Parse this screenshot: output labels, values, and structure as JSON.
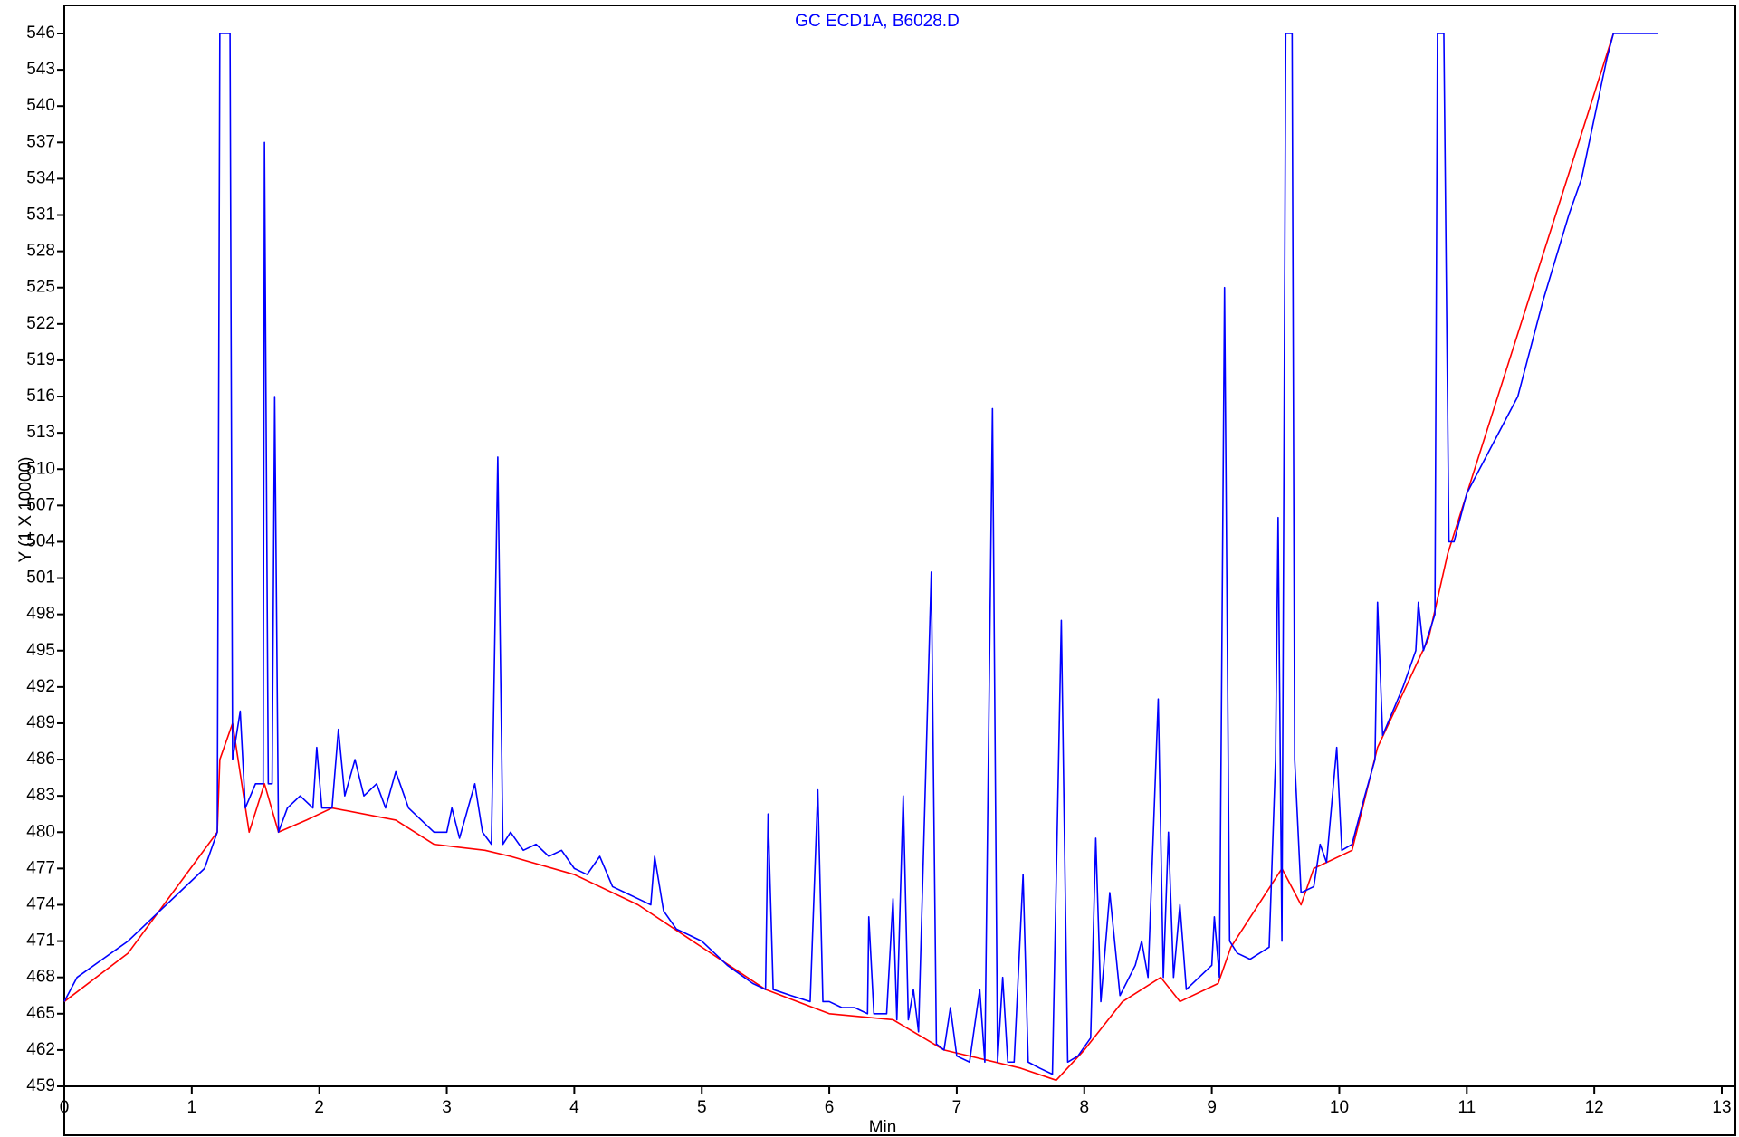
{
  "chart_data": {
    "type": "line",
    "title": "GC ECD1A, B6028.D",
    "x_label": "Min",
    "y_label": "Y (1 X 10000)",
    "xlim": [
      0,
      13
    ],
    "xticks": [
      0,
      1,
      2,
      3,
      4,
      5,
      6,
      7,
      8,
      9,
      10,
      11,
      12,
      13
    ],
    "ylim": [
      459,
      546
    ],
    "yticks": [
      459,
      462,
      465,
      468,
      471,
      474,
      477,
      480,
      483,
      486,
      489,
      492,
      495,
      498,
      501,
      504,
      507,
      510,
      513,
      516,
      519,
      522,
      525,
      528,
      531,
      534,
      537,
      540,
      543,
      546
    ],
    "series": [
      {
        "color": "#ff0000",
        "x": [
          0,
          0.5,
          1.2,
          1.22,
          1.32,
          1.45,
          1.57,
          1.68,
          1.9,
          2.1,
          2.6,
          2.9,
          3.3,
          3.5,
          4.0,
          4.5,
          5.0,
          5.5,
          6.0,
          6.5,
          6.9,
          7.5,
          7.78,
          8.0,
          8.3,
          8.6,
          8.75,
          9.05,
          9.15,
          9.55,
          9.7,
          9.8,
          10.1,
          10.3,
          10.7,
          10.85,
          12.15
        ],
        "values": [
          466,
          470,
          480,
          486,
          489,
          480,
          484,
          480,
          481,
          482,
          481,
          479,
          478.5,
          478,
          476.5,
          474,
          470.5,
          467,
          465,
          464.5,
          462,
          460.5,
          459.5,
          462,
          466,
          468,
          466,
          467.5,
          470.5,
          477,
          474,
          477,
          478.5,
          487,
          496,
          503,
          546
        ]
      },
      {
        "color": "#0000ff",
        "x": [
          0,
          0.1,
          0.3,
          0.5,
          0.7,
          0.9,
          1.1,
          1.2,
          1.22,
          1.3,
          1.32,
          1.38,
          1.42,
          1.5,
          1.56,
          1.57,
          1.6,
          1.63,
          1.65,
          1.68,
          1.75,
          1.85,
          1.95,
          1.98,
          2.02,
          2.1,
          2.15,
          2.2,
          2.28,
          2.35,
          2.45,
          2.52,
          2.6,
          2.7,
          2.8,
          2.9,
          3.0,
          3.04,
          3.1,
          3.22,
          3.28,
          3.35,
          3.4,
          3.44,
          3.5,
          3.6,
          3.7,
          3.8,
          3.9,
          4.0,
          4.1,
          4.2,
          4.3,
          4.4,
          4.5,
          4.6,
          4.63,
          4.7,
          4.8,
          5.0,
          5.2,
          5.4,
          5.5,
          5.52,
          5.56,
          5.7,
          5.85,
          5.91,
          5.95,
          6.0,
          6.1,
          6.2,
          6.3,
          6.31,
          6.35,
          6.45,
          6.5,
          6.53,
          6.58,
          6.62,
          6.66,
          6.7,
          6.8,
          6.84,
          6.9,
          6.95,
          7.0,
          7.1,
          7.18,
          7.22,
          7.28,
          7.32,
          7.36,
          7.4,
          7.45,
          7.52,
          7.56,
          7.65,
          7.75,
          7.82,
          7.87,
          7.95,
          8.05,
          8.09,
          8.13,
          8.2,
          8.28,
          8.4,
          8.45,
          8.5,
          8.58,
          8.62,
          8.66,
          8.7,
          8.75,
          8.8,
          8.9,
          9.0,
          9.02,
          9.06,
          9.1,
          9.14,
          9.2,
          9.3,
          9.45,
          9.5,
          9.52,
          9.55,
          9.58,
          9.63,
          9.65,
          9.7,
          9.8,
          9.85,
          9.9,
          9.98,
          10.02,
          10.1,
          10.2,
          10.28,
          10.3,
          10.34,
          10.5,
          10.6,
          10.62,
          10.66,
          10.75,
          10.77,
          10.82,
          10.86,
          10.9,
          11.0,
          11.2,
          11.4,
          11.6,
          11.8,
          11.9,
          12.0,
          12.1,
          12.15,
          12.5
        ],
        "values": [
          466,
          468,
          469.5,
          471,
          473,
          475,
          477,
          480,
          546,
          546,
          486,
          490,
          482,
          484,
          484,
          537,
          484,
          484,
          516,
          480,
          482,
          483,
          482,
          487,
          482,
          482,
          488.5,
          483,
          486,
          483,
          484,
          482,
          485,
          482,
          481,
          480,
          480,
          482,
          479.5,
          484,
          480,
          479,
          511,
          479,
          480,
          478.5,
          479,
          478,
          478.5,
          477,
          476.5,
          478,
          475.5,
          475,
          474.5,
          474,
          478,
          473.5,
          472,
          471,
          469,
          467.5,
          467,
          481.5,
          467,
          466.5,
          466,
          483.5,
          466,
          466,
          465.5,
          465.5,
          465,
          473,
          465,
          465,
          474.5,
          464.5,
          483,
          464.5,
          467,
          463.5,
          501.5,
          462.5,
          462,
          465.5,
          461.5,
          461,
          467,
          461,
          515,
          461,
          468,
          461,
          461,
          476.5,
          461,
          460.5,
          460,
          497.5,
          461,
          461.5,
          463,
          479.5,
          466,
          475,
          466.5,
          469,
          471,
          468,
          491,
          468,
          480,
          468,
          474,
          467,
          468,
          469,
          473,
          468,
          525,
          471,
          470,
          469.5,
          470.5,
          486,
          506,
          471,
          546,
          546,
          486,
          475,
          475.5,
          479,
          477.5,
          487,
          478.5,
          479,
          483,
          486,
          499,
          488,
          492,
          495,
          499,
          495,
          498,
          546,
          546,
          504,
          504,
          508,
          512,
          516,
          524,
          531,
          534,
          539,
          544,
          546,
          546
        ]
      }
    ]
  }
}
